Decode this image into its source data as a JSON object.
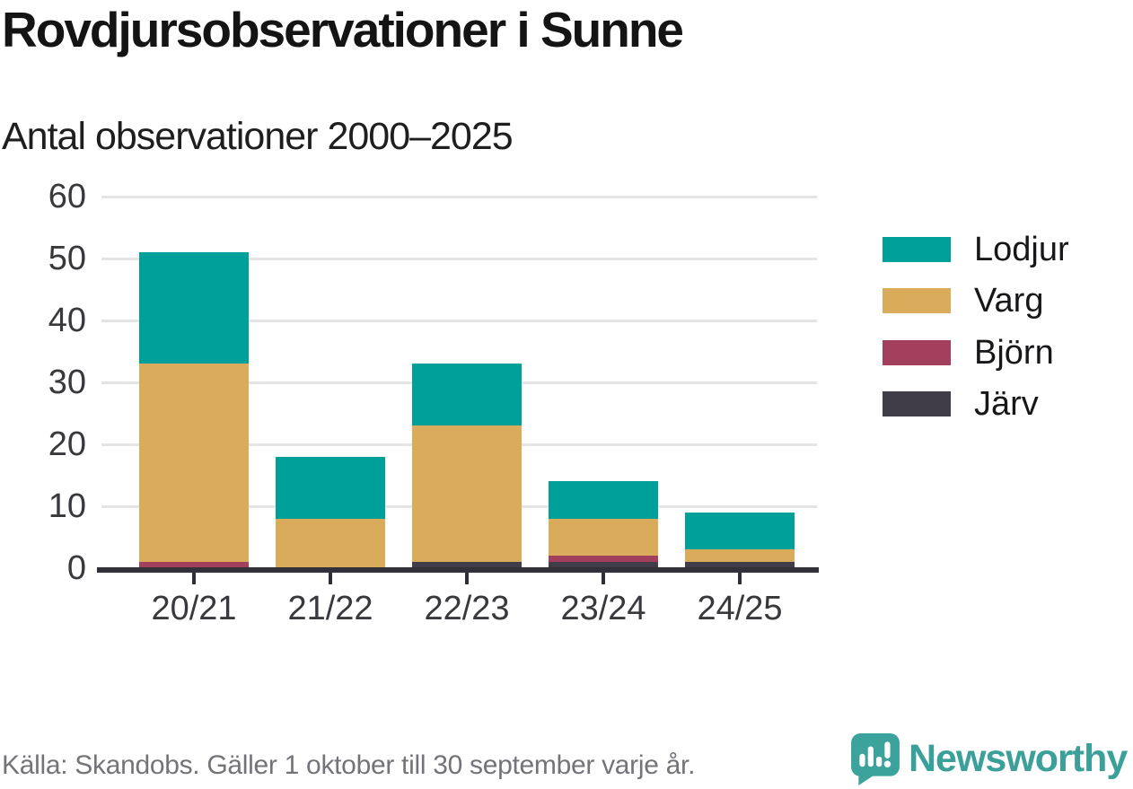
{
  "header": {
    "title": "Rovdjursobservationer i Sunne",
    "subtitle": "Antal observationer 2000–2025"
  },
  "chart_data": {
    "type": "bar",
    "stacked": true,
    "title": "Rovdjursobservationer i Sunne",
    "subtitle": "Antal observationer 2000–2025",
    "categories": [
      "20/21",
      "21/22",
      "22/23",
      "23/24",
      "24/25"
    ],
    "series": [
      {
        "name": "Lodjur",
        "color": "#00a09a",
        "values": [
          18,
          10,
          10,
          6,
          6
        ]
      },
      {
        "name": "Varg",
        "color": "#d9ab5b",
        "values": [
          32,
          8,
          22,
          6,
          2
        ]
      },
      {
        "name": "Björn",
        "color": "#a23f5d",
        "values": [
          1,
          0,
          0,
          1,
          0
        ]
      },
      {
        "name": "Järv",
        "color": "#403d49",
        "values": [
          0,
          0,
          1,
          1,
          1
        ]
      }
    ],
    "stack_order_bottom_to_top": [
      "Järv",
      "Björn",
      "Varg",
      "Lodjur"
    ],
    "totals": [
      51,
      18,
      33,
      14,
      9
    ],
    "yticks": [
      0,
      10,
      20,
      30,
      40,
      50,
      60
    ],
    "ylim": [
      0,
      60
    ],
    "xlabel": "",
    "ylabel": "",
    "grid": "horizontal",
    "legend_position": "right"
  },
  "footer": {
    "source": "Källa: Skandobs. Gäller 1 oktober till 30 september varje år.",
    "brand": "Newsworthy"
  },
  "colors": {
    "axis": "#312f38",
    "gridline": "#e4e4e4",
    "tick_label": "#38383d",
    "brand_teal": "#3b9f9a",
    "source_text": "#73737a"
  }
}
